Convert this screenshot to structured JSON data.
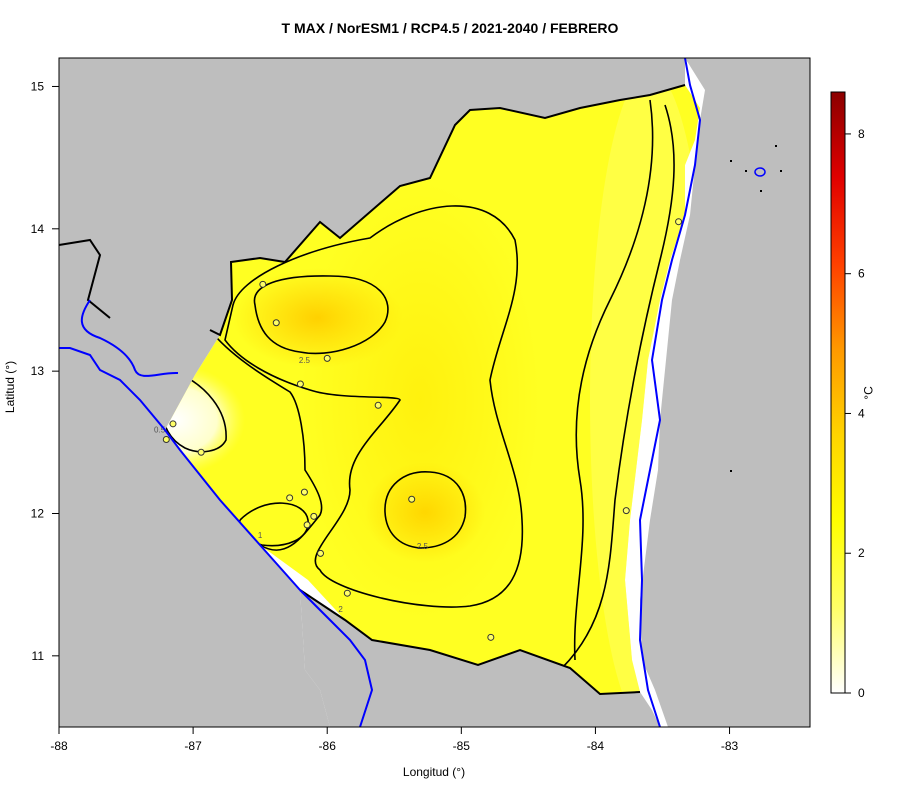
{
  "title": "T MAX / NorESM1 / RCP4.5 / 2021-2040 / FEBRERO",
  "xlabel": "Longitud (°)",
  "ylabel": "Latitud (°)",
  "colorbar": {
    "unit": "°C",
    "ticks": [
      0,
      2,
      4,
      6,
      8
    ],
    "range": [
      0,
      8.6
    ],
    "colors": [
      "#ffffff",
      "#ffff66",
      "#ffff00",
      "#ffd400",
      "#ff9900",
      "#ff4000",
      "#e00000",
      "#8b0000"
    ]
  },
  "colors": {
    "land_outside": "#bebebe",
    "ocean": "#ffffff",
    "coastline": "#0000ff",
    "border": "#000000",
    "field_base": "#ffff22"
  },
  "chart_data": {
    "type": "heatmap",
    "title": "T MAX / NorESM1 / RCP4.5 / 2021-2040 / FEBRERO",
    "xlabel": "Longitud (°)",
    "ylabel": "Latitud (°)",
    "xlim": [
      -88,
      -82.4
    ],
    "ylim": [
      10.5,
      15.2
    ],
    "xticks": [
      -88,
      -87,
      -86,
      -85,
      -84,
      -83
    ],
    "yticks": [
      11,
      12,
      13,
      14,
      15
    ],
    "contour_labels": [
      {
        "value": "2.5",
        "lon": -86.17,
        "lat": 13.08
      },
      {
        "value": "2.5",
        "lon": -85.29,
        "lat": 11.77
      },
      {
        "value": "2",
        "lon": -85.9,
        "lat": 11.33
      },
      {
        "value": "0.5",
        "lon": -87.25,
        "lat": 12.59
      },
      {
        "value": "1",
        "lon": -86.5,
        "lat": 11.85
      }
    ],
    "stations": [
      {
        "lon": -86.48,
        "lat": 13.61
      },
      {
        "lon": -86.38,
        "lat": 13.34
      },
      {
        "lon": -86.0,
        "lat": 13.09
      },
      {
        "lon": -86.2,
        "lat": 12.91
      },
      {
        "lon": -85.62,
        "lat": 12.76
      },
      {
        "lon": -87.15,
        "lat": 12.63
      },
      {
        "lon": -87.2,
        "lat": 12.52
      },
      {
        "lon": -86.94,
        "lat": 12.43
      },
      {
        "lon": -86.28,
        "lat": 12.11
      },
      {
        "lon": -86.17,
        "lat": 12.15
      },
      {
        "lon": -85.37,
        "lat": 12.1
      },
      {
        "lon": -86.1,
        "lat": 11.98
      },
      {
        "lon": -86.15,
        "lat": 11.92
      },
      {
        "lon": -86.05,
        "lat": 11.72
      },
      {
        "lon": -85.85,
        "lat": 11.44
      },
      {
        "lon": -84.78,
        "lat": 11.13
      },
      {
        "lon": -83.77,
        "lat": 12.02
      },
      {
        "lon": -83.38,
        "lat": 14.05
      }
    ]
  }
}
